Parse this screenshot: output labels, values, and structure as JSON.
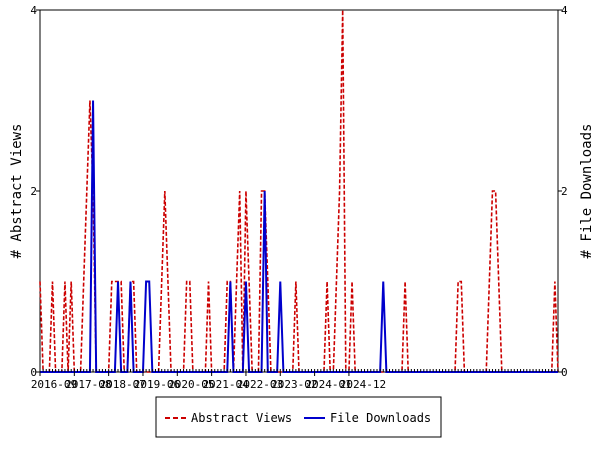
{
  "chart_data": {
    "type": "line",
    "xlabel": "",
    "ylabel_left": "# Abstract Views",
    "ylabel_right": "# File Downloads",
    "ylim": [
      0,
      4
    ],
    "y_ticks_left": [
      "0",
      "2",
      "4"
    ],
    "y_ticks_right": [
      "0",
      "2",
      "4"
    ],
    "x_tick_labels": [
      "2016-09",
      "2017-08",
      "2018-07",
      "2019-06",
      "2020-05",
      "2021-04",
      "2022-03",
      "2023-02",
      "2024-01",
      "2024-12"
    ],
    "grid": false,
    "legend_position": "bottom",
    "series": [
      {
        "name": "Abstract Views",
        "color": "#cc0000",
        "dash": "dashed",
        "values": [
          1,
          0,
          0,
          0,
          1,
          0,
          0,
          0,
          1,
          0,
          1,
          0,
          0,
          0,
          1,
          2,
          3,
          2,
          0,
          0,
          0,
          0,
          0,
          1,
          1,
          1,
          1,
          0,
          0,
          1,
          1,
          0,
          0,
          0,
          0,
          0,
          0,
          0,
          0,
          1,
          2,
          1,
          0,
          0,
          0,
          0,
          0,
          1,
          1,
          0,
          0,
          0,
          0,
          0,
          1,
          0,
          0,
          0,
          0,
          0,
          1,
          1,
          0,
          1,
          2,
          0,
          2,
          1,
          0,
          0,
          0,
          2,
          2,
          1,
          0,
          0,
          0,
          0,
          0,
          0,
          0,
          0,
          1,
          0,
          0,
          0,
          0,
          0,
          0,
          0,
          0,
          0,
          1,
          0,
          0,
          1,
          2,
          4,
          0,
          0,
          1,
          0,
          0,
          0,
          0,
          0,
          0,
          0,
          0,
          0,
          0,
          0,
          0,
          0,
          0,
          0,
          0,
          1,
          0,
          0,
          0,
          0,
          0,
          0,
          0,
          0,
          0,
          0,
          0,
          0,
          0,
          0,
          0,
          0,
          1,
          1,
          0,
          0,
          0,
          0,
          0,
          0,
          0,
          0,
          1,
          2,
          2,
          1,
          0,
          0,
          0,
          0,
          0,
          0,
          0,
          0,
          0,
          0,
          0,
          0,
          0,
          0,
          0,
          0,
          0,
          1,
          0
        ]
      },
      {
        "name": "File Downloads",
        "color": "#0000cc",
        "dash": "solid",
        "values": [
          0,
          0,
          0,
          0,
          0,
          0,
          0,
          0,
          0,
          0,
          0,
          0,
          0,
          0,
          0,
          0,
          0,
          3,
          0,
          0,
          0,
          0,
          0,
          0,
          0,
          1,
          0,
          0,
          0,
          1,
          0,
          0,
          0,
          0,
          1,
          1,
          0,
          0,
          0,
          0,
          0,
          0,
          0,
          0,
          0,
          0,
          0,
          0,
          0,
          0,
          0,
          0,
          0,
          0,
          0,
          0,
          0,
          0,
          0,
          0,
          0,
          1,
          0,
          0,
          0,
          0,
          1,
          0,
          0,
          0,
          0,
          0,
          2,
          0,
          0,
          0,
          0,
          1,
          0,
          0,
          0,
          0,
          0,
          0,
          0,
          0,
          0,
          0,
          0,
          0,
          0,
          0,
          0,
          0,
          0,
          0,
          0,
          0,
          0,
          0,
          0,
          0,
          0,
          0,
          0,
          0,
          0,
          0,
          0,
          0,
          1,
          0,
          0,
          0,
          0,
          0,
          0,
          0,
          0,
          0,
          0,
          0,
          0,
          0,
          0,
          0,
          0,
          0,
          0,
          0,
          0,
          0,
          0,
          0,
          0,
          0,
          0,
          0,
          0,
          0,
          0,
          0,
          0,
          0,
          0,
          0,
          0,
          0,
          0,
          0,
          0,
          0,
          0,
          0,
          0,
          0,
          0,
          0,
          0,
          0,
          0,
          0,
          0,
          0,
          0,
          0,
          0
        ]
      }
    ]
  }
}
